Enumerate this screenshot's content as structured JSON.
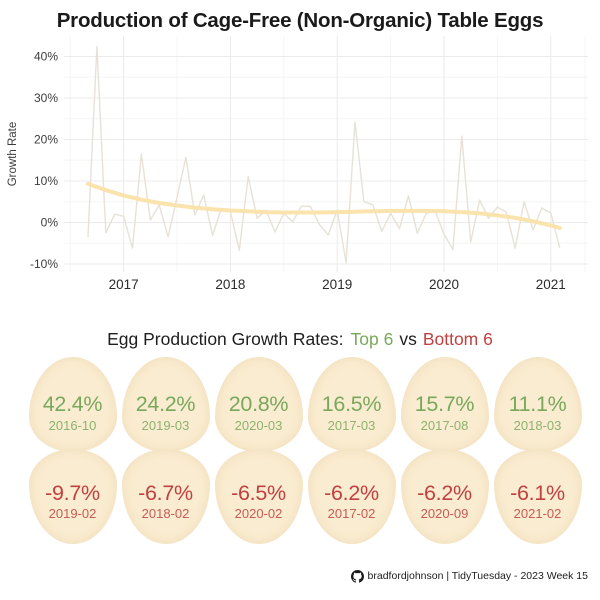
{
  "title": "Production of Cage-Free (Non-Organic) Table Eggs",
  "chart_data": {
    "type": "line",
    "title": "",
    "xlabel": "",
    "ylabel": "Growth Rate",
    "ylim": [
      -12,
      43
    ],
    "grid": true,
    "legend_position": "none",
    "ytick_values": [
      40,
      30,
      20,
      10,
      0,
      -10
    ],
    "ytick_labels": [
      "40%",
      "30%",
      "20%",
      "10%",
      "0%",
      "-10%"
    ],
    "minor_ytick_values": [
      35,
      25,
      15,
      5,
      -5
    ],
    "xtick_labels": [
      "2017",
      "2018",
      "2019",
      "2020",
      "2021"
    ],
    "xtick_month_index": [
      4,
      16,
      28,
      40,
      52
    ],
    "minor_xtick_month_index": [
      -2,
      10,
      22,
      34,
      46,
      58
    ],
    "x": [
      "2016-09",
      "2016-10",
      "2016-11",
      "2016-12",
      "2017-01",
      "2017-02",
      "2017-03",
      "2017-04",
      "2017-05",
      "2017-06",
      "2017-07",
      "2017-08",
      "2017-09",
      "2017-10",
      "2017-11",
      "2017-12",
      "2018-01",
      "2018-02",
      "2018-03",
      "2018-04",
      "2018-05",
      "2018-06",
      "2018-07",
      "2018-08",
      "2018-09",
      "2018-10",
      "2018-11",
      "2018-12",
      "2019-01",
      "2019-02",
      "2019-03",
      "2019-04",
      "2019-05",
      "2019-06",
      "2019-07",
      "2019-08",
      "2019-09",
      "2019-10",
      "2019-11",
      "2019-12",
      "2020-01",
      "2020-02",
      "2020-03",
      "2020-04",
      "2020-05",
      "2020-06",
      "2020-07",
      "2020-08",
      "2020-09",
      "2020-10",
      "2020-11",
      "2020-12",
      "2021-01",
      "2021-02"
    ],
    "series": [
      {
        "name": "monthly-growth-rate",
        "color": "#e7e1d8",
        "values": [
          -3.5,
          42.4,
          -2.5,
          2.0,
          1.5,
          -6.2,
          16.5,
          0.6,
          4.2,
          -3.4,
          6.0,
          15.7,
          1.8,
          6.6,
          -3.1,
          3.4,
          2.6,
          -6.7,
          11.1,
          1.0,
          3.0,
          -2.3,
          2.2,
          0.2,
          4.0,
          3.8,
          -0.5,
          -3.0,
          3.0,
          -9.7,
          24.2,
          5.0,
          4.3,
          -2.2,
          2.2,
          -1.5,
          6.4,
          -2.6,
          2.2,
          2.8,
          -2.8,
          -6.5,
          20.8,
          -4.7,
          5.4,
          1.0,
          3.7,
          2.5,
          -6.2,
          5.0,
          -1.8,
          3.5,
          2.3,
          -6.1
        ]
      },
      {
        "name": "loess-trend",
        "color": "#fbe2a9",
        "x_index": [
          0,
          2,
          4,
          6,
          8,
          10,
          12,
          14,
          16,
          18,
          20,
          22,
          24,
          26,
          28,
          30,
          32,
          34,
          36,
          38,
          40,
          42,
          44,
          46,
          48,
          50,
          52,
          53
        ],
        "values": [
          9.3,
          7.8,
          6.5,
          5.5,
          4.7,
          4.1,
          3.6,
          3.2,
          2.9,
          2.7,
          2.5,
          2.4,
          2.4,
          2.4,
          2.5,
          2.6,
          2.7,
          2.8,
          2.8,
          2.8,
          2.7,
          2.5,
          2.2,
          1.7,
          1.1,
          0.3,
          -0.7,
          -1.3
        ]
      }
    ]
  },
  "subtitle": {
    "prefix": "Egg Production Growth Rates:",
    "top_label": "Top 6",
    "vs": "vs",
    "bottom_label": "Bottom 6"
  },
  "eggs": {
    "top": [
      {
        "value": "42.4%",
        "date": "2016-10"
      },
      {
        "value": "24.2%",
        "date": "2019-03"
      },
      {
        "value": "20.8%",
        "date": "2020-03"
      },
      {
        "value": "16.5%",
        "date": "2017-03"
      },
      {
        "value": "15.7%",
        "date": "2017-08"
      },
      {
        "value": "11.1%",
        "date": "2018-03"
      }
    ],
    "bottom": [
      {
        "value": "-9.7%",
        "date": "2019-02"
      },
      {
        "value": "-6.7%",
        "date": "2018-02"
      },
      {
        "value": "-6.5%",
        "date": "2020-02"
      },
      {
        "value": "-6.2%",
        "date": "2017-02"
      },
      {
        "value": "-6.2%",
        "date": "2020-09"
      },
      {
        "value": "-6.1%",
        "date": "2021-02"
      }
    ]
  },
  "footer": {
    "icon": "github-icon",
    "credit": "bradfordjohnson | TidyTuesday - 2023 Week 15"
  },
  "colors": {
    "positive_green": "#79a85c",
    "negative_red": "#bf4141",
    "egg_fill": "#faecd0",
    "trend_orange": "#fbe2a9",
    "line_gray": "#e7e1d8",
    "grid_gray": "#ebebeb",
    "title_text": "#1a1a1a",
    "axis_text": "#3d3d3d"
  }
}
